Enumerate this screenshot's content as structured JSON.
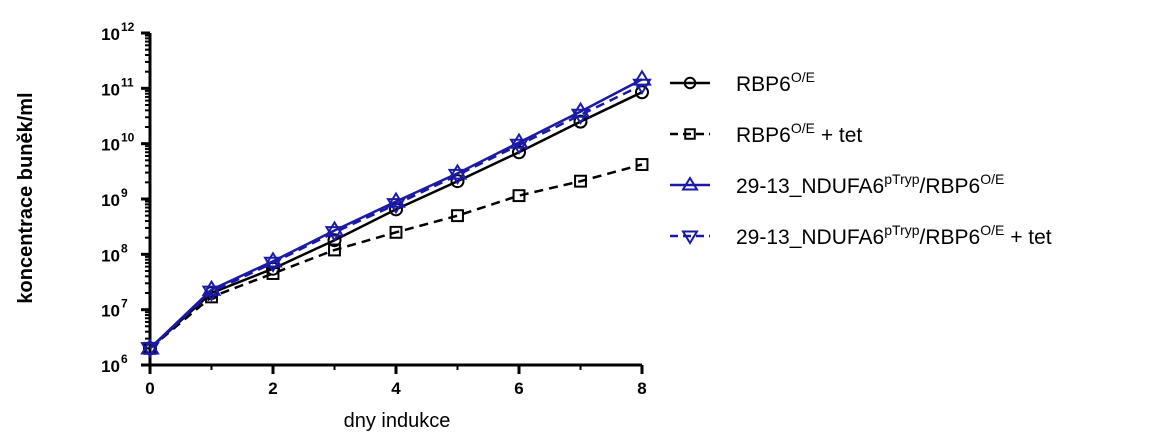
{
  "chart_data": {
    "type": "line",
    "xlabel": "dny indukce",
    "ylabel": "koncentrace buněk/ml",
    "x": [
      0,
      1,
      2,
      3,
      4,
      5,
      6,
      7,
      8
    ],
    "xlim": [
      0,
      8
    ],
    "xticks": [
      "0",
      "2",
      "4",
      "6",
      "8"
    ],
    "y_scale": "log",
    "ylim": [
      1000000,
      1000000000000
    ],
    "yticks": [
      {
        "base": "10",
        "exp": "6"
      },
      {
        "base": "10",
        "exp": "7"
      },
      {
        "base": "10",
        "exp": "8"
      },
      {
        "base": "10",
        "exp": "9"
      },
      {
        "base": "10",
        "exp": "10"
      },
      {
        "base": "10",
        "exp": "11"
      },
      {
        "base": "10",
        "exp": "12"
      }
    ],
    "legend_position": "right",
    "series": [
      {
        "label_main": "RBP6",
        "label_sup": "O/E",
        "label_rest": "",
        "label_sup2": "",
        "label_tail": "",
        "marker": "circle",
        "dash": "solid",
        "color": "#000000",
        "values": [
          2000000,
          20000000,
          55000000,
          180000000,
          650000000,
          2100000000,
          7000000000,
          25000000000,
          85000000000
        ]
      },
      {
        "label_main": "RBP6",
        "label_sup": "O/E",
        "label_rest": " + tet",
        "label_sup2": "",
        "label_tail": "",
        "marker": "square",
        "dash": "dashed",
        "color": "#000000",
        "values": [
          2000000,
          17000000,
          45000000,
          120000000,
          250000000,
          500000000,
          1150000000,
          2100000000,
          4200000000
        ]
      },
      {
        "label_main": "29-13_NDUFA6",
        "label_sup": "pTryp",
        "label_rest": "/RBP6",
        "label_sup2": "O/E",
        "label_tail": "",
        "marker": "triangle-up",
        "dash": "solid",
        "color": "#1a1aa6",
        "values": [
          2000000,
          23000000,
          75000000,
          270000000,
          900000000,
          2900000000,
          10500000000,
          38000000000,
          145000000000
        ]
      },
      {
        "label_main": "29-13_NDUFA6",
        "label_sup": "pTryp",
        "label_rest": "/RBP6",
        "label_sup2": "O/E",
        "label_tail": " + tet",
        "marker": "triangle-down",
        "dash": "dashed",
        "color": "#1a1aa6",
        "values": [
          2000000,
          21000000,
          70000000,
          250000000,
          800000000,
          2700000000,
          9500000000,
          33000000000,
          115000000000
        ]
      }
    ]
  }
}
